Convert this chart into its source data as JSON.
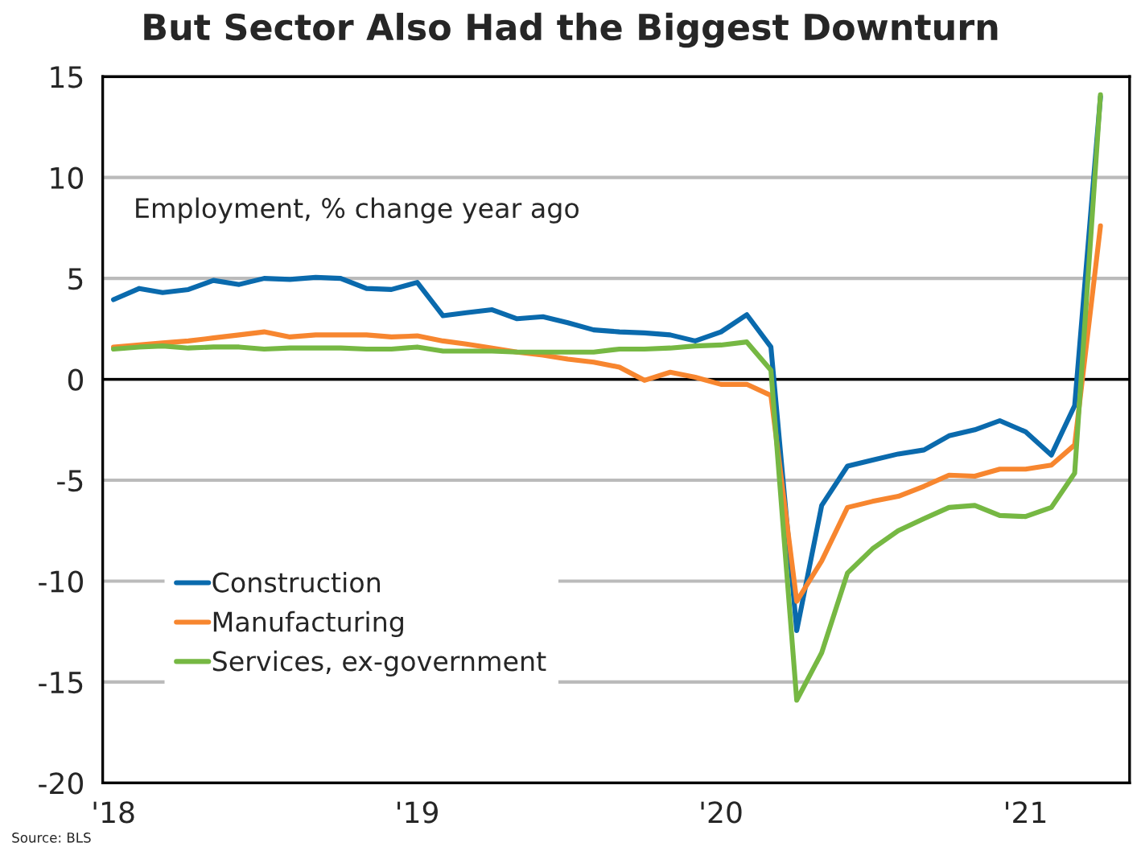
{
  "chart_data": {
    "type": "line",
    "title": "But Sector Also Had the Biggest Downturn",
    "x": [
      "2018-01",
      "2018-02",
      "2018-03",
      "2018-04",
      "2018-05",
      "2018-06",
      "2018-07",
      "2018-08",
      "2018-09",
      "2018-10",
      "2018-11",
      "2018-12",
      "2019-01",
      "2019-02",
      "2019-03",
      "2019-04",
      "2019-05",
      "2019-06",
      "2019-07",
      "2019-08",
      "2019-09",
      "2019-10",
      "2019-11",
      "2019-12",
      "2020-01",
      "2020-02",
      "2020-03",
      "2020-04",
      "2020-05",
      "2020-06",
      "2020-07",
      "2020-08",
      "2020-09",
      "2020-10",
      "2020-11",
      "2020-12",
      "2021-01",
      "2021-02",
      "2021-03",
      "2021-04"
    ],
    "series": [
      {
        "name": "Construction",
        "color": "#0a6aad",
        "values": [
          3.95,
          4.5,
          4.3,
          4.45,
          4.9,
          4.7,
          5.0,
          4.95,
          5.05,
          5.0,
          4.5,
          4.45,
          4.8,
          3.15,
          3.3,
          3.45,
          3.0,
          3.1,
          2.8,
          2.45,
          2.35,
          2.3,
          2.2,
          1.9,
          2.35,
          3.2,
          1.6,
          -12.45,
          -6.25,
          -4.3,
          -4.0,
          -3.7,
          -3.5,
          -2.8,
          -2.5,
          -2.05,
          -2.6,
          -3.75,
          -1.3,
          14.0
        ]
      },
      {
        "name": "Manufacturing",
        "color": "#f7862f",
        "values": [
          1.6,
          1.7,
          1.8,
          1.9,
          2.05,
          2.2,
          2.35,
          2.1,
          2.2,
          2.2,
          2.2,
          2.1,
          2.15,
          1.9,
          1.75,
          1.55,
          1.35,
          1.2,
          1.0,
          0.85,
          0.6,
          -0.05,
          0.35,
          0.1,
          -0.25,
          -0.25,
          -0.8,
          -11.0,
          -9.0,
          -6.35,
          -6.05,
          -5.8,
          -5.3,
          -4.75,
          -4.8,
          -4.45,
          -4.45,
          -4.25,
          -3.25,
          7.6
        ]
      },
      {
        "name": "Services, ex-government",
        "color": "#76b843",
        "values": [
          1.5,
          1.6,
          1.65,
          1.55,
          1.6,
          1.6,
          1.5,
          1.55,
          1.55,
          1.55,
          1.5,
          1.5,
          1.6,
          1.4,
          1.4,
          1.4,
          1.35,
          1.35,
          1.35,
          1.35,
          1.5,
          1.5,
          1.55,
          1.65,
          1.7,
          1.85,
          0.45,
          -15.9,
          -13.55,
          -9.6,
          -8.4,
          -7.5,
          -6.9,
          -6.35,
          -6.25,
          -6.75,
          -6.8,
          -6.35,
          -4.65,
          14.1
        ]
      }
    ],
    "xlim": [
      "2017-12-19",
      "2021-05-06"
    ],
    "xticks": [
      {
        "value": "2018-01-01",
        "label": "'18"
      },
      {
        "value": "2019-01-01",
        "label": "'19"
      },
      {
        "value": "2020-01-01",
        "label": "'20"
      },
      {
        "value": "2021-01-01",
        "label": "'21"
      }
    ],
    "ylim": [
      -20,
      15
    ],
    "yticks": [
      -20,
      -15,
      -10,
      -5,
      0,
      5,
      10,
      15
    ],
    "grid": "y",
    "legend": "bottom left",
    "line_style": "solid",
    "marker": "none",
    "ref_lines": [
      {
        "axis": "y",
        "value": 0,
        "color": "#000000"
      }
    ],
    "annotations": [
      "Employment, % change year ago",
      "Source: BLS"
    ]
  }
}
